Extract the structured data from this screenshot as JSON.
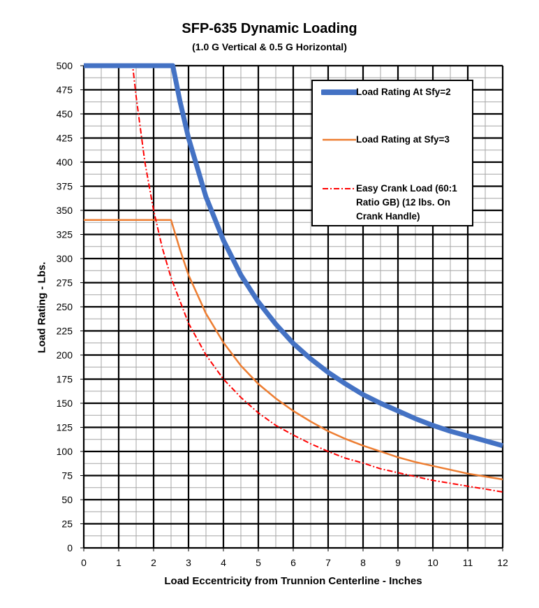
{
  "chart_data": {
    "type": "line",
    "title": "SFP-635 Dynamic Loading",
    "subtitle": "(1.0 G Vertical & 0.5 G Horizontal)",
    "xlabel": "Load Eccentricity from Trunnion Centerline - Inches",
    "ylabel": "Load Rating - Lbs.",
    "xlim": [
      0,
      12
    ],
    "ylim": [
      0,
      500
    ],
    "x_ticks": [
      0,
      1,
      2,
      3,
      4,
      5,
      6,
      7,
      8,
      9,
      10,
      11,
      12
    ],
    "y_ticks": [
      0,
      25,
      50,
      75,
      100,
      125,
      150,
      175,
      200,
      225,
      250,
      275,
      300,
      325,
      350,
      375,
      400,
      425,
      450,
      475,
      500
    ],
    "grid": true,
    "legend_position": "top-right",
    "series": [
      {
        "name": "Load Rating At Sfy=2",
        "color": "#4472C4",
        "style": "solid-thick",
        "points": [
          [
            0,
            500
          ],
          [
            2.55,
            500
          ],
          [
            2.75,
            464
          ],
          [
            3,
            425
          ],
          [
            3.5,
            364
          ],
          [
            4,
            319
          ],
          [
            4.5,
            283
          ],
          [
            5,
            255
          ],
          [
            5.5,
            232
          ],
          [
            6,
            212
          ],
          [
            6.5,
            196
          ],
          [
            7,
            182
          ],
          [
            7.5,
            170
          ],
          [
            8,
            159
          ],
          [
            8.5,
            150
          ],
          [
            9,
            142
          ],
          [
            9.5,
            134
          ],
          [
            10,
            127
          ],
          [
            10.5,
            121
          ],
          [
            11,
            116
          ],
          [
            11.5,
            111
          ],
          [
            12,
            106
          ]
        ]
      },
      {
        "name": "Load Rating at Sfy=3",
        "color": "#ED7D31",
        "style": "solid",
        "points": [
          [
            0,
            340
          ],
          [
            2.5,
            340
          ],
          [
            2.75,
            310
          ],
          [
            3,
            283
          ],
          [
            3.5,
            243
          ],
          [
            4,
            213
          ],
          [
            4.5,
            189
          ],
          [
            5,
            170
          ],
          [
            5.5,
            155
          ],
          [
            6,
            142
          ],
          [
            6.5,
            131
          ],
          [
            7,
            121
          ],
          [
            7.5,
            113
          ],
          [
            8,
            106
          ],
          [
            8.5,
            100
          ],
          [
            9,
            94
          ],
          [
            9.5,
            89
          ],
          [
            10,
            85
          ],
          [
            10.5,
            81
          ],
          [
            11,
            77
          ],
          [
            11.5,
            74
          ],
          [
            12,
            71
          ]
        ]
      },
      {
        "name": "Easy Crank Load (60:1 Ratio GB) (12 lbs. On Crank Handle)",
        "color": "#FF0000",
        "style": "dash-dot",
        "points": [
          [
            0,
            500
          ],
          [
            1.4,
            500
          ],
          [
            1.5,
            468
          ],
          [
            1.75,
            400
          ],
          [
            2,
            350
          ],
          [
            2.25,
            311
          ],
          [
            2.5,
            280
          ],
          [
            3,
            233
          ],
          [
            3.5,
            200
          ],
          [
            4,
            175
          ],
          [
            4.5,
            156
          ],
          [
            5,
            140
          ],
          [
            5.5,
            127
          ],
          [
            6,
            117
          ],
          [
            6.5,
            108
          ],
          [
            7,
            100
          ],
          [
            7.5,
            93
          ],
          [
            8,
            88
          ],
          [
            8.5,
            82
          ],
          [
            9,
            78
          ],
          [
            9.5,
            74
          ],
          [
            10,
            70
          ],
          [
            10.5,
            67
          ],
          [
            11,
            64
          ],
          [
            11.5,
            61
          ],
          [
            12,
            58
          ]
        ]
      }
    ]
  }
}
